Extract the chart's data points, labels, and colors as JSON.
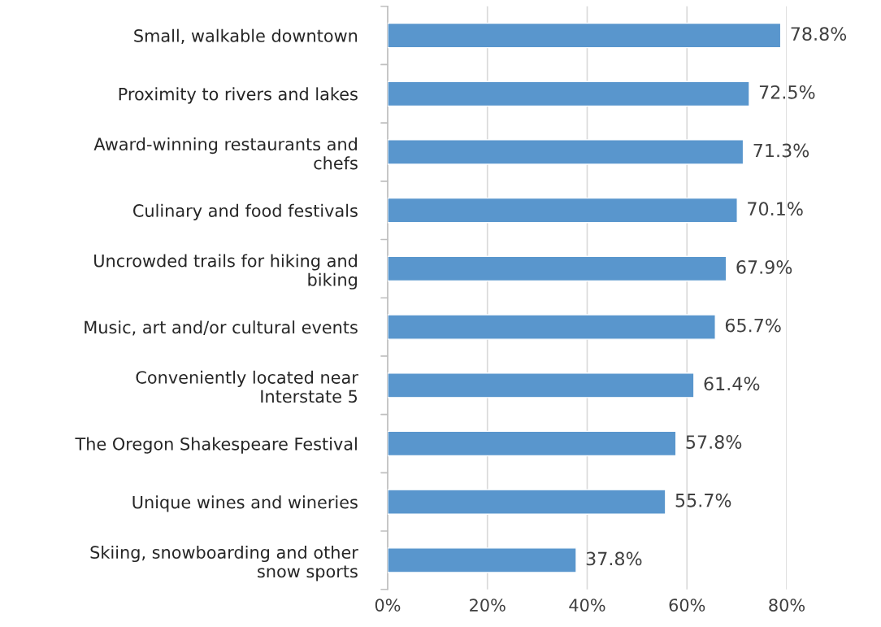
{
  "chart_data": {
    "type": "bar",
    "orientation": "horizontal",
    "categories": [
      "Small, walkable downtown",
      "Proximity to rivers and lakes",
      "Award-winning restaurants and\nchefs",
      "Culinary and food festivals",
      "Uncrowded trails for hiking and\nbiking",
      "Music, art and/or cultural events",
      "Conveniently located near\nInterstate 5",
      "The Oregon Shakespeare Festival",
      "Unique wines and wineries",
      "Skiing, snowboarding and other\nsnow sports"
    ],
    "values": [
      78.8,
      72.5,
      71.3,
      70.1,
      67.9,
      65.7,
      61.4,
      57.8,
      55.7,
      37.8
    ],
    "value_labels": [
      "78.8%",
      "72.5%",
      "71.3%",
      "70.1%",
      "67.9%",
      "65.7%",
      "61.4%",
      "57.8%",
      "55.7%",
      "37.8%"
    ],
    "color": "#5996cd",
    "xlim": [
      0,
      80
    ],
    "xticks": [
      {
        "value": 0,
        "label": "0%"
      },
      {
        "value": 20,
        "label": "20%"
      },
      {
        "value": 40,
        "label": "40%"
      },
      {
        "value": 60,
        "label": "60%"
      },
      {
        "value": 80,
        "label": "80%"
      }
    ],
    "grid": "x",
    "legend": false
  }
}
